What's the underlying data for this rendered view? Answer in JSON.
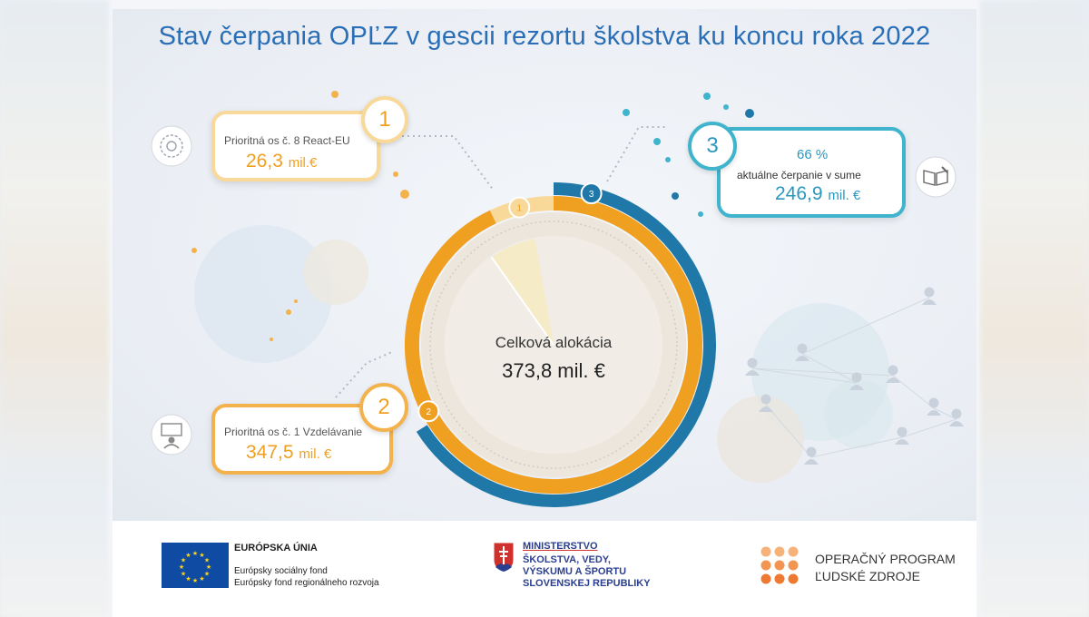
{
  "title": "Stav čerpania OPĽZ v gescii rezortu školstva ku koncu roka 2022",
  "colors": {
    "title": "#2a6eb6",
    "orange": "#f0a020",
    "light_orange": "#f8d999",
    "teal": "#2a97c0",
    "dark_blue": "#1f78a8"
  },
  "chart_data": {
    "type": "pie",
    "center_label": "Celková alokácia",
    "center_value": "373,8 mil. €",
    "total": 373.8,
    "unit": "mil. €",
    "segments": [
      {
        "marker": "1",
        "label": "Prioritná os č. 8 React-EU",
        "value": 26.3,
        "value_text": "26,3",
        "unit": "mil.€",
        "color": "#f8d999"
      },
      {
        "marker": "2",
        "label": "Prioritná os č. 1 Vzdelávanie",
        "value": 347.5,
        "value_text": "347,5",
        "unit": "mil. €",
        "color": "#f0a020"
      }
    ],
    "drawdown": {
      "marker": "3",
      "percent": 66,
      "percent_text": "66 %",
      "label": "aktuálne čerpanie v sume",
      "value": 246.9,
      "value_text": "246,9",
      "unit": "mil. €",
      "color": "#1f78a8"
    }
  },
  "callouts": {
    "c1": {
      "number": "1",
      "label": "Prioritná os č. 8 React-EU",
      "value": "26,3",
      "unit": "mil.€"
    },
    "c2": {
      "number": "2",
      "label": "Prioritná os č. 1 Vzdelávanie",
      "value": "347,5",
      "unit": "mil. €"
    },
    "c3": {
      "number": "3",
      "percent": "66 %",
      "label": "aktuálne čerpanie v sume",
      "value": "246,9",
      "unit": "mil. €"
    }
  },
  "ring_markers": {
    "m1": "1",
    "m2": "2",
    "m3": "3"
  },
  "footer": {
    "eu": {
      "title": "EURÓPSKA ÚNIA",
      "line1": "Európsky sociálny fond",
      "line2": "Európsky fond regionálneho rozvoja"
    },
    "ministry": {
      "line1": "MINISTERSTVO",
      "line2": "ŠKOLSTVA, VEDY,",
      "line3": "VÝSKUMU A ŠPORTU",
      "line4": "SLOVENSKEJ REPUBLIKY"
    },
    "op": {
      "line1": "OPERAČNÝ PROGRAM",
      "line2": "ĽUDSKÉ ZDROJE"
    }
  },
  "icons": [
    "gear-network-icon",
    "teacher-board-icon",
    "book-pencil-icon",
    "eu-flag-icon",
    "slovak-crest-icon",
    "op-dots-logo-icon"
  ]
}
